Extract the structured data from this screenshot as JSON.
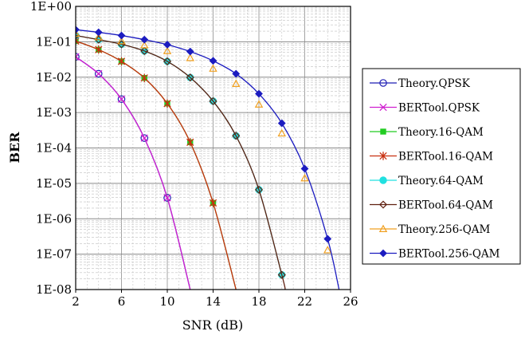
{
  "chart_data": {
    "type": "line",
    "xlabel": "SNR (dB)",
    "ylabel": "BER",
    "xlim": [
      2,
      26
    ],
    "ylim": [
      1e-08,
      1
    ],
    "yscale": "log",
    "x_ticks": [
      2,
      6,
      10,
      14,
      18,
      22,
      26
    ],
    "y_ticks": [
      "1E-08",
      "1E-07",
      "1E-06",
      "1E-05",
      "1E-04",
      "1E-03",
      "1E-02",
      "1E-01",
      "1E+00"
    ],
    "grid": true,
    "legend_position": "right",
    "series": [
      {
        "name": "Theory.QPSK",
        "color": "#1f1fb4",
        "marker": "circle-open",
        "line": true,
        "x": [
          2,
          4,
          6,
          8,
          10,
          12
        ],
        "y": [
          0.0375,
          0.0125,
          0.0024,
          0.00019,
          3.9e-06,
          1e-08
        ]
      },
      {
        "name": "BERTool.QPSK",
        "color": "#d020d0",
        "marker": "x",
        "line": true,
        "x": [
          2,
          4,
          6,
          8,
          10,
          12
        ],
        "y": [
          0.0375,
          0.0125,
          0.0024,
          0.00019,
          3.9e-06,
          1e-08
        ]
      },
      {
        "name": "Theory.16-QAM",
        "color": "#22cc22",
        "marker": "square",
        "line": true,
        "x": [
          2,
          4,
          6,
          8,
          10,
          12,
          14,
          16
        ],
        "y": [
          0.105,
          0.06,
          0.028,
          0.0095,
          0.0018,
          0.000145,
          2.8e-06,
          1e-08
        ]
      },
      {
        "name": "BERTool.16-QAM",
        "color": "#c83010",
        "marker": "asterisk",
        "line": true,
        "x": [
          2,
          4,
          6,
          8,
          10,
          12,
          14,
          16
        ],
        "y": [
          0.105,
          0.06,
          0.028,
          0.0095,
          0.0018,
          0.000145,
          2.8e-06,
          1e-08
        ]
      },
      {
        "name": "Theory.64-QAM",
        "color": "#20e0e0",
        "marker": "circle",
        "line": true,
        "x": [
          2,
          4,
          6,
          8,
          10,
          12,
          14,
          16,
          18,
          20
        ],
        "y": [
          0.15,
          0.115,
          0.085,
          0.055,
          0.028,
          0.0098,
          0.0021,
          0.00022,
          6.6e-06,
          2.6e-08
        ]
      },
      {
        "name": "BERTool.64-QAM",
        "color": "#602010",
        "marker": "diamond-open",
        "line": true,
        "x": [
          2,
          4,
          6,
          8,
          10,
          12,
          14,
          16,
          18,
          20,
          20.3
        ],
        "y": [
          0.15,
          0.115,
          0.085,
          0.055,
          0.028,
          0.0098,
          0.0021,
          0.00022,
          6.6e-06,
          2.6e-08,
          1e-08
        ]
      },
      {
        "name": "Theory.256-QAM",
        "color": "#f0a020",
        "marker": "triangle-open",
        "line": false,
        "x": [
          2,
          4,
          6,
          8,
          10,
          12,
          14,
          16,
          18,
          20,
          22,
          24
        ],
        "y": [
          0.17,
          0.135,
          0.105,
          0.08,
          0.055,
          0.035,
          0.0175,
          0.0065,
          0.0017,
          0.00026,
          1.4e-05,
          1.3e-07
        ]
      },
      {
        "name": "BERTool.256-QAM",
        "color": "#1c1cc0",
        "marker": "diamond",
        "line": true,
        "x": [
          2,
          4,
          6,
          8,
          10,
          12,
          14,
          16,
          18,
          20,
          22,
          24,
          25
        ],
        "y": [
          0.22,
          0.185,
          0.15,
          0.115,
          0.083,
          0.053,
          0.029,
          0.0125,
          0.0034,
          0.0005,
          2.6e-05,
          2.7e-07,
          1e-08
        ]
      }
    ]
  }
}
